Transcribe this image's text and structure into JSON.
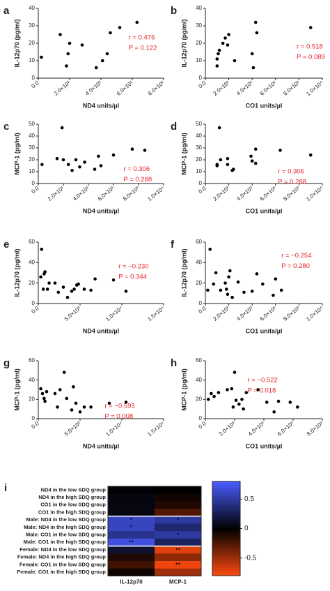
{
  "chart_data": [
    {
      "type": "scatter",
      "panel_label": "a",
      "xlabel": "ND4 units/µl",
      "ylabel": "IL-12p70 (pg/ml)",
      "x": [
        200,
        1400,
        1800,
        1900,
        2000,
        2800,
        3700,
        4100,
        4400,
        4600,
        5200,
        6300
      ],
      "y": [
        12,
        25,
        7,
        14,
        20,
        19,
        6,
        10,
        14,
        26,
        29,
        32
      ],
      "xlim": [
        0,
        8000
      ],
      "xticks": [
        {
          "value": 0,
          "label": "0.0"
        },
        {
          "value": 2000,
          "label": "2.0×10³"
        },
        {
          "value": 4000,
          "label": "4.0×10³"
        },
        {
          "value": 6000,
          "label": "6.0×10³"
        },
        {
          "value": 8000,
          "label": "8.0×10³"
        }
      ],
      "ylim": [
        0,
        40
      ],
      "yticks": [
        0,
        10,
        20,
        30,
        40
      ],
      "color": "#000000",
      "annotations": [
        "r = 0.476",
        "P = 0.122"
      ],
      "annotation_color": "#e8202a"
    },
    {
      "type": "scatter",
      "panel_label": "b",
      "xlabel": "CO1 units/µl",
      "ylabel": "IL-12p70 (pg/ml)",
      "x": [
        1000,
        1000,
        1100,
        1200,
        1500,
        1700,
        1900,
        2000,
        2500,
        4000,
        4100,
        4300,
        4400,
        9000
      ],
      "y": [
        7,
        11,
        14,
        16,
        20,
        23,
        19,
        25,
        10,
        14,
        6,
        32,
        26,
        29
      ],
      "xlim": [
        0,
        10000
      ],
      "xticks": [
        {
          "value": 0,
          "label": "0.0"
        },
        {
          "value": 2000,
          "label": "2.0×10³"
        },
        {
          "value": 4000,
          "label": "4.0×10³"
        },
        {
          "value": 6000,
          "label": "6.0×10³"
        },
        {
          "value": 8000,
          "label": "8.0×10³"
        },
        {
          "value": 10000,
          "label": "1.0×10⁴"
        }
      ],
      "ylim": [
        0,
        40
      ],
      "yticks": [
        0,
        10,
        20,
        30,
        40
      ],
      "color": "#000000",
      "annotations": [
        "r = 0.518",
        "P = 0.089"
      ],
      "annotation_color": "#e8202a"
    },
    {
      "type": "scatter",
      "panel_label": "c",
      "xlabel": "ND4 units/µl",
      "ylabel": "MCP-1 (pg/ml)",
      "x": [
        300,
        1500,
        1900,
        2000,
        2400,
        2700,
        3000,
        3300,
        3700,
        4500,
        4800,
        5000,
        6000,
        7500,
        8500
      ],
      "y": [
        16,
        21,
        47,
        20,
        16,
        11,
        20,
        14,
        18,
        12,
        23,
        15,
        24,
        29,
        28
      ],
      "xlim": [
        0,
        10000
      ],
      "xticks": [
        {
          "value": 0,
          "label": "0.0"
        },
        {
          "value": 2000,
          "label": "2.0×10³"
        },
        {
          "value": 4000,
          "label": "4.0×10³"
        },
        {
          "value": 6000,
          "label": "6.0×10³"
        },
        {
          "value": 8000,
          "label": "8.0×10³"
        },
        {
          "value": 10000,
          "label": "1.0×10⁴"
        }
      ],
      "ylim": [
        0,
        50
      ],
      "yticks": [
        0,
        10,
        20,
        30,
        40,
        50
      ],
      "color": "#000000",
      "annotations": [
        "r = 0.306",
        "P = 0.288"
      ],
      "annotation_color": "#e8202a"
    },
    {
      "type": "scatter",
      "panel_label": "d",
      "xlabel": "CO1 units/µl",
      "ylabel": "MCP-1 (pg/ml)",
      "x": [
        1000,
        1000,
        1200,
        1300,
        1900,
        1900,
        2300,
        2400,
        3900,
        4000,
        4300,
        4300,
        6400,
        9000
      ],
      "y": [
        16,
        15,
        47,
        20,
        21,
        16,
        11,
        12,
        23,
        19,
        29,
        17,
        28,
        24
      ],
      "xlim": [
        0,
        10000
      ],
      "xticks": [
        {
          "value": 0,
          "label": "0.0"
        },
        {
          "value": 2000,
          "label": "2.0×10³"
        },
        {
          "value": 4000,
          "label": "4.0×10³"
        },
        {
          "value": 6000,
          "label": "6.0×10³"
        },
        {
          "value": 8000,
          "label": "8.0×10³"
        },
        {
          "value": 10000,
          "label": "1.0×10⁴"
        }
      ],
      "ylim": [
        0,
        50
      ],
      "yticks": [
        0,
        10,
        20,
        30,
        40,
        50
      ],
      "color": "#000000",
      "annotations": [
        "r = 0.306",
        "P = 0.288"
      ],
      "annotation_color": "#e8202a"
    },
    {
      "type": "scatter",
      "panel_label": "e",
      "xlabel": "ND4 units/µl",
      "ylabel": "IL-12p70 (pg/ml)",
      "x": [
        300,
        400,
        600,
        700,
        800,
        1100,
        1300,
        2000,
        2400,
        3000,
        3500,
        4000,
        4300,
        4600,
        4800,
        5500,
        6300,
        6800,
        9000,
        10500
      ],
      "y": [
        26,
        53,
        14,
        29,
        31,
        14,
        20,
        20,
        11,
        16,
        6,
        12,
        14,
        18,
        19,
        14,
        13,
        24,
        23,
        12
      ],
      "xlim": [
        0,
        15000
      ],
      "xticks": [
        {
          "value": 0,
          "label": "0.0"
        },
        {
          "value": 5000,
          "label": "5.0×10³"
        },
        {
          "value": 10000,
          "label": "1.0×10⁴"
        },
        {
          "value": 15000,
          "label": "1.5×10⁴"
        }
      ],
      "ylim": [
        0,
        60
      ],
      "yticks": [
        0,
        20,
        40,
        60
      ],
      "color": "#000000",
      "annotations": [
        "r = −0.230",
        "P = 0.344"
      ],
      "annotation_color": "#e8202a"
    },
    {
      "type": "scatter",
      "panel_label": "f",
      "xlabel": "CO1 units/µl",
      "ylabel": "IL-12p70 (pg/ml)",
      "x": [
        200,
        400,
        700,
        900,
        1300,
        1700,
        1800,
        1900,
        2000,
        2100,
        2300,
        2800,
        3300,
        4000,
        4400,
        4900,
        5800,
        6000,
        6500
      ],
      "y": [
        13,
        53,
        19,
        30,
        13,
        20,
        14,
        9,
        26,
        32,
        6,
        21,
        11,
        12,
        29,
        19,
        8,
        24,
        13
      ],
      "xlim": [
        0,
        10000
      ],
      "xticks": [
        {
          "value": 0,
          "label": "0.0"
        },
        {
          "value": 2000,
          "label": "2.0×10³"
        },
        {
          "value": 4000,
          "label": "4.0×10³"
        },
        {
          "value": 6000,
          "label": "6.0×10³"
        },
        {
          "value": 8000,
          "label": "8.0×10³"
        },
        {
          "value": 10000,
          "label": "1.0×10⁴"
        }
      ],
      "ylim": [
        0,
        60
      ],
      "yticks": [
        0,
        20,
        40,
        60
      ],
      "color": "#000000",
      "annotations": [
        "r = −0.254",
        "P = 0.280"
      ],
      "annotation_color": "#e8202a"
    },
    {
      "type": "scatter",
      "panel_label": "g",
      "xlabel": "ND4 units/µl",
      "ylabel": "MCP-1 (pg/ml)",
      "x": [
        300,
        500,
        700,
        800,
        1000,
        2000,
        2300,
        2600,
        3100,
        3400,
        4000,
        4200,
        4500,
        5000,
        5500,
        6300,
        8500,
        10500
      ],
      "y": [
        31,
        26,
        21,
        18,
        28,
        26,
        12,
        30,
        48,
        21,
        9,
        33,
        16,
        7,
        12,
        12,
        16,
        17
      ],
      "xlim": [
        0,
        15000
      ],
      "xticks": [
        {
          "value": 0,
          "label": "0.0"
        },
        {
          "value": 5000,
          "label": "5.0×10³"
        },
        {
          "value": 10000,
          "label": "1.0×10⁴"
        },
        {
          "value": 15000,
          "label": "1.5×10⁴"
        }
      ],
      "ylim": [
        0,
        60
      ],
      "yticks": [
        0,
        20,
        40,
        60
      ],
      "color": "#000000",
      "annotations": [
        "r = −0.593",
        "P = 0.008"
      ],
      "annotation_color": "#e8202a"
    },
    {
      "type": "scatter",
      "panel_label": "h",
      "xlabel": "CO1 units/µl",
      "ylabel": "MCP-1 (pg/ml)",
      "x": [
        200,
        400,
        600,
        900,
        1500,
        1800,
        1900,
        2000,
        2100,
        2300,
        2500,
        2600,
        2800,
        3600,
        4200,
        4700,
        5000,
        5800,
        6300
      ],
      "y": [
        20,
        26,
        23,
        27,
        30,
        31,
        12,
        48,
        19,
        15,
        20,
        10,
        27,
        30,
        17,
        7,
        18,
        17,
        12
      ],
      "xlim": [
        0,
        8000
      ],
      "xticks": [
        {
          "value": 0,
          "label": "0.0"
        },
        {
          "value": 2000,
          "label": "2.0×10³"
        },
        {
          "value": 4000,
          "label": "4.0×10³"
        },
        {
          "value": 6000,
          "label": "6.0×10³"
        },
        {
          "value": 8000,
          "label": "8.0×10³"
        }
      ],
      "ylim": [
        0,
        60
      ],
      "yticks": [
        0,
        20,
        40,
        60
      ],
      "color": "#000000",
      "annotations": [
        "r = −0.522",
        "P = 0.018"
      ],
      "annotation_color": "#e8202a"
    },
    {
      "type": "heatmap",
      "panel_label": "i",
      "rows": [
        "ND4 in the low SDQ group",
        "ND4 in the high SDQ group",
        "CO1 in the low SDQ group",
        "CO1 in the high SDQ group",
        "Male: ND4 in the low SDQ group",
        "Male: ND4 in the high SDQ group",
        "Male: CO1 in the low SDQ group",
        "Male: CO1 in the high SDQ group",
        "Female: ND4 in the low SDQ group",
        "Female: ND4 in the high SDQ group",
        "Female: CO1 in the low SDQ group",
        "Female: CO1 in the high SDQ group"
      ],
      "columns": [
        "IL-12p70",
        "MCP-1"
      ],
      "values": [
        [
          0.02,
          0.0
        ],
        [
          0.05,
          -0.05
        ],
        [
          0.05,
          -0.1
        ],
        [
          0.05,
          -0.25
        ],
        [
          0.6,
          0.5
        ],
        [
          0.6,
          0.35
        ],
        [
          0.45,
          0.5
        ],
        [
          0.7,
          0.3
        ],
        [
          0.15,
          -0.7
        ],
        [
          -0.1,
          -0.45
        ],
        [
          -0.2,
          -0.75
        ],
        [
          -0.05,
          -0.5
        ]
      ],
      "annotations": [
        [
          null,
          null
        ],
        [
          null,
          null
        ],
        [
          null,
          null
        ],
        [
          null,
          null
        ],
        [
          "*",
          "*"
        ],
        [
          "*",
          null
        ],
        [
          null,
          "*"
        ],
        [
          "**",
          null
        ],
        [
          null,
          "**"
        ],
        [
          null,
          null
        ],
        [
          null,
          "**"
        ],
        [
          null,
          null
        ]
      ],
      "zlim": [
        -0.8,
        0.8
      ],
      "zticks": [
        0.5,
        0,
        -0.5
      ],
      "colorscale": [
        [
          -0.8,
          "#ff4a10"
        ],
        [
          0,
          "#000000"
        ],
        [
          0.8,
          "#4a5cff"
        ]
      ]
    }
  ]
}
